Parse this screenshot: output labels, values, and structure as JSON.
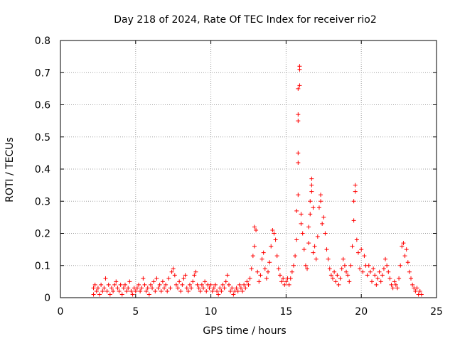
{
  "chart_data": {
    "type": "scatter",
    "title": "Day 218 of 2024, Rate Of TEC Index for receiver rio2",
    "xlabel": "GPS time / hours",
    "ylabel": "ROTI / TECUs",
    "xlim": [
      0,
      25
    ],
    "ylim": [
      0,
      0.8
    ],
    "xticks": [
      0,
      5,
      10,
      15,
      20,
      25
    ],
    "xtick_labels": [
      "0",
      "5",
      "10",
      "15",
      "20",
      "25"
    ],
    "yticks": [
      0,
      0.1,
      0.2,
      0.3,
      0.4,
      0.5,
      0.6,
      0.7,
      0.8
    ],
    "ytick_labels": [
      "0",
      "0.1",
      "0.2",
      "0.3",
      "0.4",
      "0.5",
      "0.6",
      "0.7",
      "0.8"
    ],
    "grid": true,
    "marker": "+",
    "series": [
      {
        "name": "ROTI",
        "color": "#ff0000",
        "points": [
          [
            2.2,
            0.01
          ],
          [
            2.2,
            0.03
          ],
          [
            2.3,
            0.04
          ],
          [
            2.4,
            0.02
          ],
          [
            2.5,
            0.03
          ],
          [
            2.6,
            0.01
          ],
          [
            2.7,
            0.04
          ],
          [
            2.8,
            0.02
          ],
          [
            2.9,
            0.03
          ],
          [
            3.0,
            0.06
          ],
          [
            3.1,
            0.02
          ],
          [
            3.2,
            0.04
          ],
          [
            3.3,
            0.01
          ],
          [
            3.4,
            0.03
          ],
          [
            3.5,
            0.02
          ],
          [
            3.6,
            0.04
          ],
          [
            3.7,
            0.05
          ],
          [
            3.8,
            0.03
          ],
          [
            3.9,
            0.02
          ],
          [
            4.0,
            0.04
          ],
          [
            4.1,
            0.01
          ],
          [
            4.2,
            0.03
          ],
          [
            4.3,
            0.04
          ],
          [
            4.4,
            0.02
          ],
          [
            4.5,
            0.03
          ],
          [
            4.6,
            0.05
          ],
          [
            4.7,
            0.02
          ],
          [
            4.8,
            0.01
          ],
          [
            4.9,
            0.03
          ],
          [
            5.0,
            0.02
          ],
          [
            5.1,
            0.03
          ],
          [
            5.2,
            0.04
          ],
          [
            5.3,
            0.02
          ],
          [
            5.4,
            0.03
          ],
          [
            5.5,
            0.06
          ],
          [
            5.6,
            0.04
          ],
          [
            5.7,
            0.02
          ],
          [
            5.8,
            0.03
          ],
          [
            5.9,
            0.01
          ],
          [
            6.0,
            0.04
          ],
          [
            6.1,
            0.03
          ],
          [
            6.2,
            0.05
          ],
          [
            6.3,
            0.02
          ],
          [
            6.4,
            0.06
          ],
          [
            6.5,
            0.03
          ],
          [
            6.6,
            0.04
          ],
          [
            6.7,
            0.02
          ],
          [
            6.8,
            0.05
          ],
          [
            6.9,
            0.03
          ],
          [
            7.0,
            0.04
          ],
          [
            7.1,
            0.02
          ],
          [
            7.2,
            0.06
          ],
          [
            7.3,
            0.03
          ],
          [
            7.4,
            0.08
          ],
          [
            7.5,
            0.09
          ],
          [
            7.6,
            0.07
          ],
          [
            7.7,
            0.04
          ],
          [
            7.8,
            0.03
          ],
          [
            7.9,
            0.05
          ],
          [
            8.0,
            0.02
          ],
          [
            8.1,
            0.04
          ],
          [
            8.2,
            0.06
          ],
          [
            8.3,
            0.07
          ],
          [
            8.4,
            0.03
          ],
          [
            8.5,
            0.02
          ],
          [
            8.6,
            0.04
          ],
          [
            8.7,
            0.03
          ],
          [
            8.8,
            0.05
          ],
          [
            8.9,
            0.07
          ],
          [
            9.0,
            0.08
          ],
          [
            9.1,
            0.04
          ],
          [
            9.2,
            0.03
          ],
          [
            9.3,
            0.02
          ],
          [
            9.4,
            0.04
          ],
          [
            9.5,
            0.03
          ],
          [
            9.6,
            0.05
          ],
          [
            9.7,
            0.02
          ],
          [
            9.8,
            0.04
          ],
          [
            9.9,
            0.03
          ],
          [
            10.0,
            0.04
          ],
          [
            10.1,
            0.02
          ],
          [
            10.2,
            0.03
          ],
          [
            10.3,
            0.04
          ],
          [
            10.4,
            0.02
          ],
          [
            10.5,
            0.01
          ],
          [
            10.6,
            0.03
          ],
          [
            10.7,
            0.02
          ],
          [
            10.8,
            0.04
          ],
          [
            10.9,
            0.03
          ],
          [
            11.0,
            0.05
          ],
          [
            11.1,
            0.07
          ],
          [
            11.2,
            0.04
          ],
          [
            11.3,
            0.02
          ],
          [
            11.4,
            0.03
          ],
          [
            11.5,
            0.01
          ],
          [
            11.6,
            0.02
          ],
          [
            11.7,
            0.03
          ],
          [
            11.8,
            0.02
          ],
          [
            11.9,
            0.04
          ],
          [
            12.0,
            0.03
          ],
          [
            12.1,
            0.02
          ],
          [
            12.2,
            0.04
          ],
          [
            12.3,
            0.03
          ],
          [
            12.4,
            0.05
          ],
          [
            12.5,
            0.04
          ],
          [
            12.6,
            0.06
          ],
          [
            12.7,
            0.09
          ],
          [
            12.8,
            0.13
          ],
          [
            12.9,
            0.16
          ],
          [
            12.9,
            0.22
          ],
          [
            13.0,
            0.21
          ],
          [
            13.1,
            0.08
          ],
          [
            13.2,
            0.05
          ],
          [
            13.3,
            0.07
          ],
          [
            13.4,
            0.12
          ],
          [
            13.5,
            0.14
          ],
          [
            13.6,
            0.09
          ],
          [
            13.7,
            0.06
          ],
          [
            13.8,
            0.08
          ],
          [
            13.9,
            0.11
          ],
          [
            14.0,
            0.16
          ],
          [
            14.1,
            0.21
          ],
          [
            14.2,
            0.2
          ],
          [
            14.3,
            0.18
          ],
          [
            14.4,
            0.13
          ],
          [
            14.5,
            0.09
          ],
          [
            14.6,
            0.07
          ],
          [
            14.7,
            0.05
          ],
          [
            14.8,
            0.06
          ],
          [
            14.9,
            0.04
          ],
          [
            15.0,
            0.05
          ],
          [
            15.1,
            0.06
          ],
          [
            15.2,
            0.04
          ],
          [
            15.3,
            0.06
          ],
          [
            15.4,
            0.08
          ],
          [
            15.5,
            0.1
          ],
          [
            15.6,
            0.13
          ],
          [
            15.7,
            0.18
          ],
          [
            15.7,
            0.27
          ],
          [
            15.8,
            0.32
          ],
          [
            15.8,
            0.42
          ],
          [
            15.8,
            0.45
          ],
          [
            15.8,
            0.55
          ],
          [
            15.8,
            0.57
          ],
          [
            15.8,
            0.65
          ],
          [
            15.9,
            0.66
          ],
          [
            15.9,
            0.71
          ],
          [
            15.9,
            0.72
          ],
          [
            16.0,
            0.26
          ],
          [
            16.0,
            0.23
          ],
          [
            16.1,
            0.2
          ],
          [
            16.2,
            0.15
          ],
          [
            16.3,
            0.1
          ],
          [
            16.4,
            0.09
          ],
          [
            16.5,
            0.17
          ],
          [
            16.5,
            0.22
          ],
          [
            16.6,
            0.26
          ],
          [
            16.6,
            0.3
          ],
          [
            16.7,
            0.33
          ],
          [
            16.7,
            0.35
          ],
          [
            16.7,
            0.37
          ],
          [
            16.8,
            0.28
          ],
          [
            16.8,
            0.14
          ],
          [
            16.9,
            0.16
          ],
          [
            17.0,
            0.12
          ],
          [
            17.1,
            0.19
          ],
          [
            17.2,
            0.28
          ],
          [
            17.3,
            0.32
          ],
          [
            17.3,
            0.3
          ],
          [
            17.4,
            0.23
          ],
          [
            17.5,
            0.25
          ],
          [
            17.6,
            0.2
          ],
          [
            17.7,
            0.15
          ],
          [
            17.8,
            0.12
          ],
          [
            17.9,
            0.09
          ],
          [
            18.0,
            0.07
          ],
          [
            18.1,
            0.06
          ],
          [
            18.2,
            0.08
          ],
          [
            18.3,
            0.05
          ],
          [
            18.4,
            0.07
          ],
          [
            18.5,
            0.04
          ],
          [
            18.6,
            0.06
          ],
          [
            18.7,
            0.09
          ],
          [
            18.8,
            0.12
          ],
          [
            18.9,
            0.1
          ],
          [
            19.0,
            0.08
          ],
          [
            19.1,
            0.07
          ],
          [
            19.2,
            0.05
          ],
          [
            19.3,
            0.1
          ],
          [
            19.4,
            0.16
          ],
          [
            19.5,
            0.24
          ],
          [
            19.5,
            0.3
          ],
          [
            19.6,
            0.33
          ],
          [
            19.6,
            0.35
          ],
          [
            19.7,
            0.18
          ],
          [
            19.8,
            0.14
          ],
          [
            19.9,
            0.09
          ],
          [
            20.0,
            0.15
          ],
          [
            20.1,
            0.08
          ],
          [
            20.2,
            0.13
          ],
          [
            20.3,
            0.1
          ],
          [
            20.4,
            0.07
          ],
          [
            20.5,
            0.1
          ],
          [
            20.6,
            0.08
          ],
          [
            20.7,
            0.05
          ],
          [
            20.8,
            0.09
          ],
          [
            20.9,
            0.07
          ],
          [
            21.0,
            0.04
          ],
          [
            21.1,
            0.06
          ],
          [
            21.2,
            0.08
          ],
          [
            21.3,
            0.05
          ],
          [
            21.4,
            0.07
          ],
          [
            21.5,
            0.09
          ],
          [
            21.6,
            0.12
          ],
          [
            21.7,
            0.1
          ],
          [
            21.8,
            0.08
          ],
          [
            21.9,
            0.06
          ],
          [
            22.0,
            0.04
          ],
          [
            22.1,
            0.03
          ],
          [
            22.2,
            0.05
          ],
          [
            22.3,
            0.04
          ],
          [
            22.4,
            0.03
          ],
          [
            22.5,
            0.06
          ],
          [
            22.6,
            0.1
          ],
          [
            22.7,
            0.16
          ],
          [
            22.8,
            0.17
          ],
          [
            22.9,
            0.13
          ],
          [
            23.0,
            0.15
          ],
          [
            23.1,
            0.11
          ],
          [
            23.2,
            0.08
          ],
          [
            23.3,
            0.06
          ],
          [
            23.4,
            0.04
          ],
          [
            23.5,
            0.03
          ],
          [
            23.6,
            0.02
          ],
          [
            23.7,
            0.03
          ],
          [
            23.8,
            0.01
          ],
          [
            23.9,
            0.02
          ],
          [
            24.0,
            0.01
          ]
        ]
      }
    ]
  }
}
